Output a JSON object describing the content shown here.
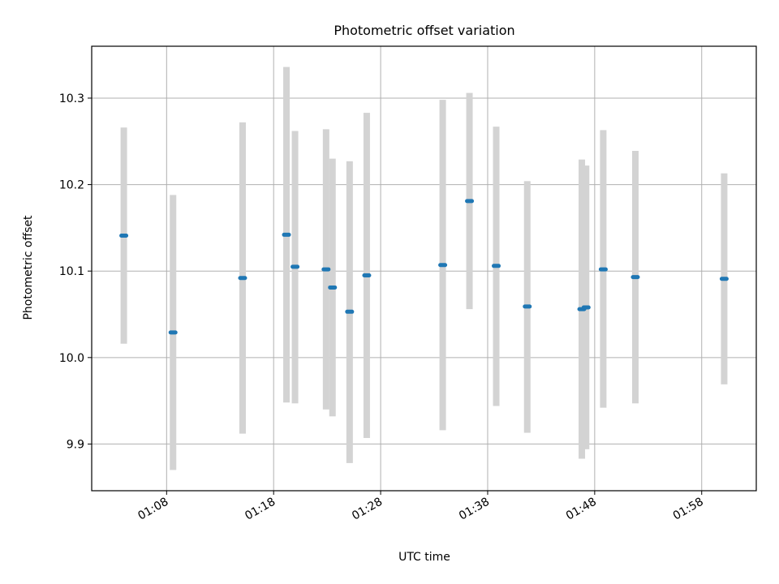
{
  "chart_data": {
    "type": "scatter",
    "title": "Photometric offset variation",
    "xlabel": "UTC time",
    "ylabel": "Photometric offset",
    "x_ticks": [
      "01:08",
      "01:18",
      "01:28",
      "01:38",
      "01:48",
      "01:58"
    ],
    "x_tick_minutes": [
      68,
      78,
      88,
      98,
      108,
      118
    ],
    "y_ticks": [
      "9.9",
      "10.0",
      "10.1",
      "10.2",
      "10.3"
    ],
    "y_tick_values": [
      9.9,
      10.0,
      10.1,
      10.2,
      10.3
    ],
    "xlim_minutes": [
      61.0,
      123.1
    ],
    "ylim": [
      9.846,
      10.36
    ],
    "grid": true,
    "point_color": "#1f77b4",
    "errorbar_color": "#d3d3d3",
    "points": [
      {
        "t": "01:04:00",
        "y": 10.141,
        "ylo": 10.016,
        "yhi": 10.266
      },
      {
        "t": "01:08:36",
        "y": 10.029,
        "ylo": 9.87,
        "yhi": 10.188
      },
      {
        "t": "01:15:06",
        "y": 10.092,
        "ylo": 9.912,
        "yhi": 10.272
      },
      {
        "t": "01:19:12",
        "y": 10.142,
        "ylo": 9.948,
        "yhi": 10.336
      },
      {
        "t": "01:20:00",
        "y": 10.105,
        "ylo": 9.947,
        "yhi": 10.262
      },
      {
        "t": "01:22:54",
        "y": 10.102,
        "ylo": 9.94,
        "yhi": 10.264
      },
      {
        "t": "01:23:30",
        "y": 10.081,
        "ylo": 9.932,
        "yhi": 10.23
      },
      {
        "t": "01:25:06",
        "y": 10.053,
        "ylo": 9.878,
        "yhi": 10.227
      },
      {
        "t": "01:26:42",
        "y": 10.095,
        "ylo": 9.907,
        "yhi": 10.283
      },
      {
        "t": "01:33:48",
        "y": 10.107,
        "ylo": 9.916,
        "yhi": 10.298
      },
      {
        "t": "01:36:18",
        "y": 10.181,
        "ylo": 10.056,
        "yhi": 10.306
      },
      {
        "t": "01:38:48",
        "y": 10.106,
        "ylo": 9.944,
        "yhi": 10.267
      },
      {
        "t": "01:41:42",
        "y": 10.059,
        "ylo": 9.913,
        "yhi": 10.204
      },
      {
        "t": "01:46:48",
        "y": 10.056,
        "ylo": 9.883,
        "yhi": 10.229
      },
      {
        "t": "01:47:12",
        "y": 10.058,
        "ylo": 9.894,
        "yhi": 10.222
      },
      {
        "t": "01:48:48",
        "y": 10.102,
        "ylo": 9.942,
        "yhi": 10.263
      },
      {
        "t": "01:51:48",
        "y": 10.093,
        "ylo": 9.947,
        "yhi": 10.239
      },
      {
        "t": "02:00:06",
        "y": 10.091,
        "ylo": 9.969,
        "yhi": 10.213
      }
    ]
  }
}
